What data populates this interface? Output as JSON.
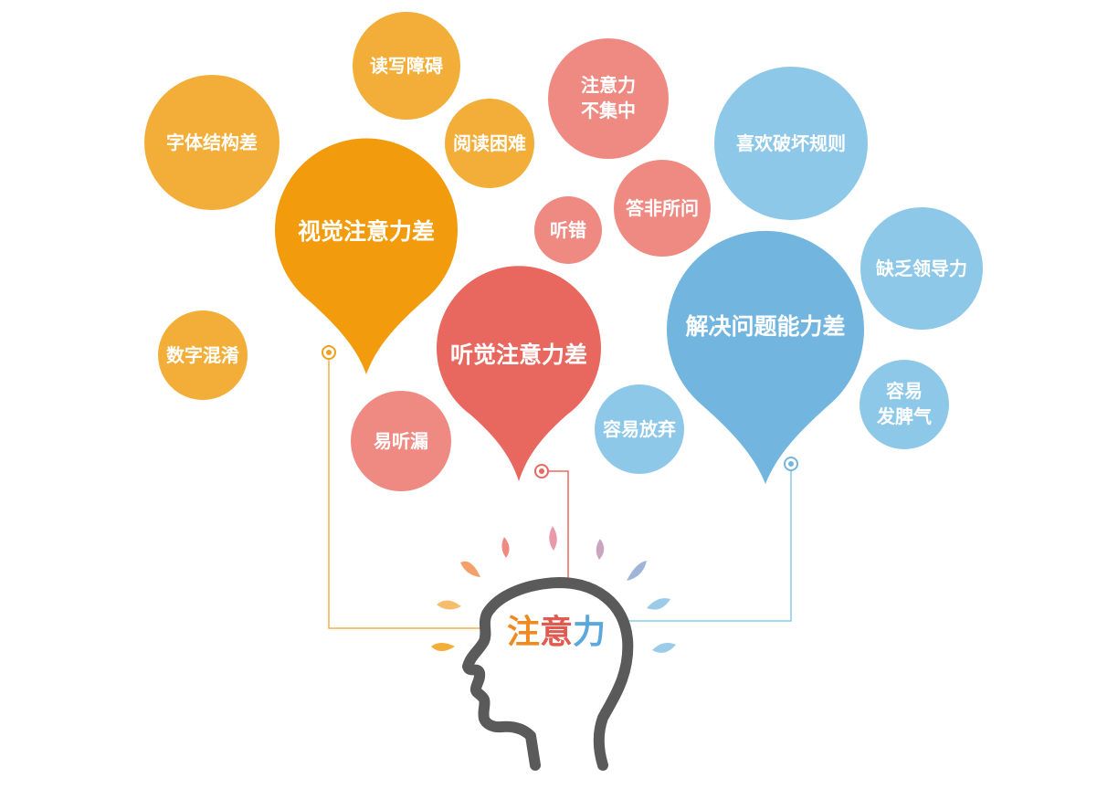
{
  "center_title": {
    "chars": [
      "注",
      "意",
      "力"
    ],
    "colors": [
      "#f08a1e",
      "#e05a50",
      "#5aa8dc"
    ]
  },
  "colors": {
    "orange": "#f29c0d",
    "orange_light": "#f2ae38",
    "red": "#e8685f",
    "pink": "#ef8a82",
    "blue": "#72b6e0",
    "blue_light": "#8ec8e8",
    "head_outline": "#5a5a5a"
  },
  "groups": {
    "visual": {
      "label": "视觉注意力差",
      "icon": "visual-pin-icon"
    },
    "auditory": {
      "label": "听觉注意力差",
      "icon": "auditory-pin-icon"
    },
    "problem": {
      "label": "解决问题能力差",
      "icon": "problem-pin-icon"
    }
  },
  "bubbles": {
    "font_poor": "字体结构差",
    "reading_writing": "读写障碍",
    "reading_difficulty": "阅读困难",
    "number_confusion": "数字混淆",
    "inattentive": [
      "注意力",
      "不集中"
    ],
    "mishear": "听错",
    "irrelevant_answer": "答非所问",
    "miss_hearing": "易听漏",
    "give_up": "容易放弃",
    "break_rules": "喜欢破坏规则",
    "lack_leadership": "缺乏领导力",
    "temper": [
      "容易",
      "发脾气"
    ]
  }
}
